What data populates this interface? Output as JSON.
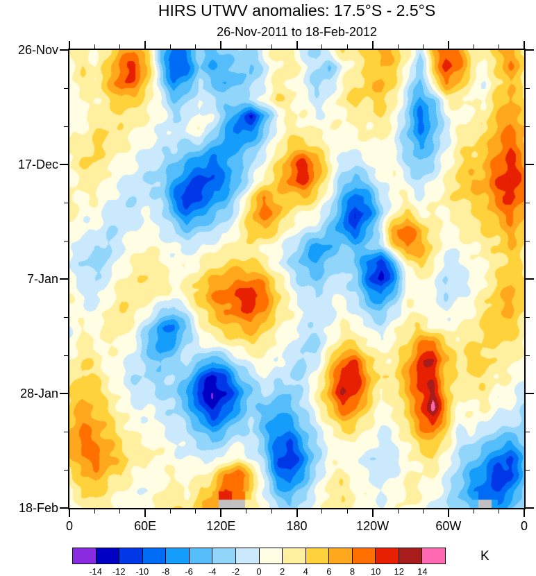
{
  "chart_data": {
    "type": "heatmap",
    "title": "HIRS UTWV anomalies: 17.5°S - 2.5°S",
    "subtitle": "26-Nov-2011 to 18-Feb-2012",
    "unit": "K",
    "x_axis": {
      "labels": [
        "0",
        "60E",
        "120E",
        "180",
        "120W",
        "60W",
        "0"
      ],
      "minor_per_major": 2,
      "range_deg": [
        0,
        360
      ]
    },
    "y_axis": {
      "labels": [
        "26-Nov",
        "17-Dec",
        "7-Jan",
        "28-Jan",
        "18-Feb"
      ],
      "minor_per_major": 2,
      "range_days": [
        0,
        84
      ]
    },
    "levels": [
      -14,
      -12,
      -10,
      -8,
      -6,
      -4,
      -2,
      0,
      2,
      4,
      6,
      8,
      10,
      12,
      14
    ],
    "colors": [
      "#8A2BE2",
      "#0000C4",
      "#0038E8",
      "#006CF5",
      "#149DFA",
      "#55BDFA",
      "#92D5FB",
      "#CBE9FC",
      "#FFFDE3",
      "#FFF0A0",
      "#FFD23C",
      "#FFA81E",
      "#FF7000",
      "#E62000",
      "#A81C1C",
      "#FF69B4"
    ],
    "missing_color": "#C0C0C0",
    "grid_desc": "Upper-tropospheric water vapor anomaly (K); rows = time from 26-Nov-2011 (top) to 18-Feb-2012 (bottom) in 3-day steps; cols = longitude 0 to 360 eastward; -999 = missing (gray)",
    "grid": [
      [
        2,
        3,
        1,
        4,
        7,
        8,
        4,
        -4,
        -9,
        -7,
        -3,
        -5,
        -4,
        -2,
        -3,
        1,
        3,
        2,
        -1,
        -3,
        1,
        4,
        3,
        5,
        7,
        6,
        3,
        -2,
        6,
        10,
        8,
        3,
        2,
        6,
        7,
        4
      ],
      [
        1,
        4,
        2,
        5,
        9,
        11,
        6,
        -3,
        -11,
        -9,
        -4,
        -6,
        -5,
        -3,
        -5,
        -1,
        2,
        4,
        1,
        -2,
        -4,
        0,
        3,
        4,
        6,
        5,
        2,
        -4,
        5,
        11,
        9,
        4,
        1,
        5,
        8,
        5
      ],
      [
        2,
        3,
        3,
        6,
        10,
        9,
        5,
        -2,
        -8,
        -6,
        -2,
        -4,
        -6,
        -4,
        -3,
        0,
        3,
        2,
        0,
        -3,
        -2,
        2,
        4,
        5,
        7,
        4,
        0,
        -5,
        3,
        8,
        6,
        2,
        0,
        4,
        6,
        3
      ],
      [
        1,
        2,
        2,
        4,
        6,
        5,
        3,
        0,
        -4,
        -3,
        0,
        -2,
        -3,
        -2,
        -1,
        1,
        4,
        3,
        1,
        -1,
        0,
        3,
        5,
        4,
        5,
        3,
        -2,
        -7,
        -4,
        2,
        3,
        1,
        2,
        5,
        7,
        4
      ],
      [
        0,
        1,
        3,
        3,
        4,
        3,
        2,
        1,
        -2,
        -1,
        1,
        0,
        -4,
        -8,
        -12,
        -6,
        0,
        2,
        2,
        0,
        1,
        2,
        3,
        3,
        4,
        2,
        -3,
        -9,
        -6,
        0,
        1,
        2,
        3,
        6,
        8,
        5
      ],
      [
        2,
        2,
        4,
        4,
        3,
        2,
        1,
        0,
        -1,
        0,
        2,
        -2,
        -6,
        -9,
        -8,
        -4,
        1,
        3,
        3,
        2,
        2,
        1,
        2,
        2,
        3,
        1,
        -4,
        -8,
        -5,
        -1,
        2,
        3,
        4,
        7,
        9,
        6
      ],
      [
        3,
        3,
        5,
        3,
        2,
        1,
        0,
        -1,
        -2,
        -3,
        -4,
        -6,
        -8,
        -6,
        -4,
        -1,
        2,
        5,
        6,
        4,
        2,
        0,
        1,
        1,
        2,
        0,
        -3,
        -6,
        -4,
        0,
        3,
        4,
        5,
        8,
        10,
        7
      ],
      [
        2,
        4,
        4,
        2,
        1,
        0,
        -1,
        -2,
        -4,
        -6,
        -8,
        -9,
        -7,
        -4,
        -2,
        1,
        4,
        8,
        12,
        8,
        3,
        -1,
        -2,
        0,
        1,
        1,
        -2,
        -4,
        -2,
        1,
        4,
        5,
        6,
        9,
        11,
        8
      ],
      [
        1,
        3,
        3,
        1,
        0,
        -1,
        -2,
        -3,
        -6,
        -9,
        -11,
        -10,
        -8,
        -5,
        -1,
        3,
        5,
        9,
        11,
        7,
        2,
        -3,
        -5,
        -3,
        0,
        2,
        0,
        -2,
        0,
        2,
        5,
        6,
        7,
        10,
        12,
        9
      ],
      [
        2,
        2,
        2,
        0,
        -1,
        -2,
        -1,
        -2,
        -8,
        -12,
        -10,
        -8,
        -6,
        -2,
        4,
        8,
        6,
        5,
        6,
        4,
        0,
        -5,
        -9,
        -7,
        -2,
        1,
        2,
        0,
        1,
        3,
        4,
        5,
        6,
        9,
        11,
        8
      ],
      [
        3,
        1,
        1,
        -1,
        -2,
        -1,
        0,
        -1,
        -5,
        -9,
        -7,
        -5,
        -3,
        0,
        6,
        9,
        7,
        3,
        2,
        1,
        -2,
        -7,
        -12,
        -9,
        -3,
        2,
        4,
        2,
        2,
        2,
        3,
        4,
        5,
        7,
        9,
        6
      ],
      [
        2,
        0,
        0,
        -2,
        -1,
        0,
        1,
        0,
        -2,
        -4,
        -3,
        -2,
        -1,
        2,
        5,
        6,
        4,
        1,
        0,
        -1,
        -4,
        -8,
        -10,
        -6,
        0,
        8,
        10,
        6,
        3,
        1,
        2,
        3,
        4,
        5,
        7,
        5
      ],
      [
        1,
        -1,
        -2,
        -3,
        0,
        1,
        2,
        1,
        0,
        -1,
        0,
        1,
        2,
        3,
        3,
        2,
        1,
        -1,
        -4,
        -8,
        -6,
        -3,
        -5,
        -4,
        -2,
        5,
        9,
        7,
        4,
        0,
        1,
        2,
        3,
        4,
        6,
        4
      ],
      [
        0,
        -2,
        -3,
        -2,
        1,
        2,
        3,
        2,
        1,
        1,
        2,
        3,
        4,
        5,
        4,
        3,
        0,
        -2,
        -5,
        -6,
        -4,
        -2,
        -4,
        -8,
        -12,
        -6,
        3,
        5,
        3,
        -1,
        0,
        1,
        2,
        3,
        5,
        3
      ],
      [
        1,
        -1,
        -2,
        0,
        2,
        3,
        4,
        3,
        2,
        2,
        4,
        6,
        7,
        8,
        8,
        7,
        3,
        0,
        -3,
        -4,
        -2,
        -1,
        -3,
        -9,
        -13,
        -8,
        0,
        2,
        1,
        -2,
        -1,
        0,
        2,
        4,
        6,
        4
      ],
      [
        2,
        0,
        -1,
        1,
        3,
        4,
        3,
        2,
        1,
        3,
        5,
        8,
        9,
        10,
        12,
        9,
        5,
        1,
        -1,
        -2,
        0,
        0,
        -2,
        -6,
        -8,
        -4,
        1,
        1,
        0,
        -2,
        0,
        1,
        3,
        5,
        7,
        5
      ],
      [
        1,
        1,
        0,
        2,
        4,
        3,
        1,
        -2,
        -4,
        -1,
        3,
        6,
        8,
        9,
        10,
        8,
        4,
        2,
        0,
        -1,
        -1,
        1,
        0,
        -3,
        -4,
        -1,
        2,
        2,
        1,
        0,
        1,
        2,
        4,
        6,
        6,
        4
      ],
      [
        0,
        2,
        1,
        3,
        3,
        1,
        -3,
        -7,
        -9,
        -4,
        1,
        4,
        5,
        6,
        7,
        5,
        2,
        1,
        -1,
        -2,
        0,
        2,
        2,
        0,
        -1,
        1,
        3,
        4,
        2,
        1,
        2,
        3,
        5,
        5,
        5,
        3
      ],
      [
        1,
        3,
        2,
        2,
        2,
        0,
        -4,
        -8,
        -6,
        -2,
        0,
        1,
        2,
        3,
        4,
        3,
        1,
        0,
        -2,
        -3,
        1,
        4,
        4,
        2,
        1,
        2,
        4,
        8,
        10,
        4,
        3,
        4,
        4,
        4,
        4,
        2
      ],
      [
        2,
        4,
        3,
        1,
        1,
        -1,
        -3,
        -5,
        -3,
        -1,
        -3,
        -6,
        -4,
        -1,
        1,
        2,
        0,
        -1,
        -3,
        -1,
        4,
        9,
        10,
        5,
        2,
        3,
        6,
        11,
        12,
        6,
        4,
        5,
        5,
        3,
        3,
        1
      ],
      [
        3,
        5,
        4,
        2,
        0,
        -2,
        -2,
        -3,
        -2,
        -4,
        -9,
        -13,
        -10,
        -5,
        -2,
        0,
        -1,
        -2,
        -2,
        1,
        6,
        11,
        12,
        7,
        3,
        4,
        7,
        12,
        11,
        5,
        3,
        4,
        4,
        2,
        2,
        0
      ],
      [
        4,
        6,
        5,
        3,
        1,
        -1,
        -1,
        -2,
        -3,
        -6,
        -12,
        -14,
        -12,
        -8,
        -4,
        -2,
        -3,
        -4,
        -1,
        2,
        7,
        12,
        11,
        6,
        2,
        3,
        6,
        10,
        13,
        6,
        2,
        3,
        3,
        1,
        1,
        -1
      ],
      [
        5,
        7,
        6,
        4,
        2,
        0,
        0,
        -1,
        -2,
        -4,
        -9,
        -12,
        -10,
        -6,
        -3,
        -4,
        -6,
        -5,
        -2,
        1,
        5,
        9,
        8,
        4,
        1,
        2,
        5,
        9,
        15,
        7,
        1,
        2,
        2,
        0,
        0,
        -2
      ],
      [
        6,
        8,
        7,
        5,
        3,
        1,
        1,
        0,
        -1,
        -2,
        -5,
        -8,
        -6,
        -3,
        -2,
        -5,
        -8,
        -7,
        -4,
        -1,
        2,
        5,
        4,
        2,
        0,
        1,
        4,
        8,
        10,
        5,
        0,
        1,
        0,
        -2,
        -2,
        -3
      ],
      [
        7,
        9,
        8,
        6,
        4,
        2,
        2,
        1,
        0,
        -1,
        -2,
        -4,
        -2,
        0,
        -1,
        -4,
        -9,
        -10,
        -6,
        -2,
        0,
        2,
        2,
        1,
        -1,
        0,
        2,
        5,
        6,
        3,
        -1,
        -2,
        -3,
        -5,
        -6,
        -4
      ],
      [
        5,
        8,
        9,
        7,
        5,
        3,
        3,
        2,
        1,
        0,
        0,
        -1,
        1,
        2,
        0,
        -3,
        -10,
        -12,
        -8,
        -3,
        1,
        1,
        0,
        -1,
        -2,
        -1,
        1,
        3,
        4,
        1,
        -2,
        -4,
        -6,
        -9,
        -10,
        -6
      ],
      [
        3,
        6,
        7,
        5,
        4,
        2,
        1,
        1,
        2,
        1,
        2,
        3,
        8,
        10,
        6,
        -1,
        -8,
        -10,
        -6,
        -2,
        2,
        3,
        1,
        0,
        -1,
        0,
        2,
        2,
        2,
        0,
        -3,
        -6,
        -8,
        -12,
        -11,
        -5
      ],
      [
        2,
        4,
        5,
        3,
        2,
        1,
        0,
        2,
        3,
        2,
        4,
        6,
        10,
        9,
        4,
        0,
        -5,
        -6,
        -3,
        0,
        3,
        4,
        2,
        1,
        0,
        1,
        3,
        2,
        1,
        -1,
        -4,
        -7,
        -9,
        -10,
        -8,
        -3
      ],
      [
        1,
        2,
        3,
        2,
        1,
        0,
        1,
        3,
        4,
        3,
        5,
        7,
        -999,
        -999,
        3,
        1,
        -2,
        -3,
        -1,
        1,
        2,
        3,
        2,
        1,
        0,
        1,
        2,
        1,
        0,
        -2,
        -3,
        -5,
        -999,
        -7,
        -5,
        -2
      ]
    ]
  }
}
